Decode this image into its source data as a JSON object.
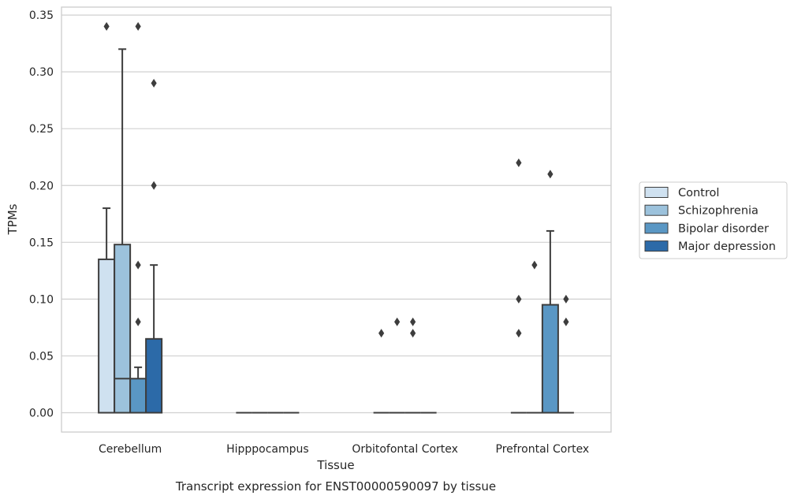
{
  "chart_data": {
    "type": "box",
    "title": "Transcript expression for ENST00000590097 by tissue",
    "xlabel": "Tissue",
    "ylabel": "TPMs",
    "ylim": [
      -0.017,
      0.357
    ],
    "yticks": [
      0.0,
      0.05,
      0.1,
      0.15,
      0.2,
      0.25,
      0.3,
      0.35
    ],
    "ytick_labels": [
      "0.00",
      "0.05",
      "0.10",
      "0.15",
      "0.20",
      "0.25",
      "0.30",
      "0.35"
    ],
    "grid": true,
    "legend_position": "right",
    "categories": [
      "Cerebellum",
      "Hipppocampus",
      "Orbitofontal Cortex",
      "Prefrontal Cortex"
    ],
    "series": [
      {
        "name": "Control",
        "color": "#cfe1f0",
        "boxes": [
          {
            "q1": 0.0,
            "median": 0.0,
            "q3": 0.135,
            "whisker_low": 0.0,
            "whisker_high": 0.18,
            "outliers": [
              0.34
            ]
          },
          {
            "q1": 0.0,
            "median": 0.0,
            "q3": 0.0,
            "whisker_low": 0.0,
            "whisker_high": 0.0,
            "outliers": []
          },
          {
            "q1": 0.0,
            "median": 0.0,
            "q3": 0.0,
            "whisker_low": 0.0,
            "whisker_high": 0.0,
            "outliers": [
              0.07
            ]
          },
          {
            "q1": 0.0,
            "median": 0.0,
            "q3": 0.0,
            "whisker_low": 0.0,
            "whisker_high": 0.0,
            "outliers": [
              0.07,
              0.1,
              0.22
            ]
          }
        ]
      },
      {
        "name": "Schizophrenia",
        "color": "#9cc2dc",
        "boxes": [
          {
            "q1": 0.0,
            "median": 0.03,
            "q3": 0.148,
            "whisker_low": 0.0,
            "whisker_high": 0.32,
            "outliers": []
          },
          {
            "q1": 0.0,
            "median": 0.0,
            "q3": 0.0,
            "whisker_low": 0.0,
            "whisker_high": 0.0,
            "outliers": []
          },
          {
            "q1": 0.0,
            "median": 0.0,
            "q3": 0.0,
            "whisker_low": 0.0,
            "whisker_high": 0.0,
            "outliers": [
              0.08
            ]
          },
          {
            "q1": 0.0,
            "median": 0.0,
            "q3": 0.0,
            "whisker_low": 0.0,
            "whisker_high": 0.0,
            "outliers": [
              0.13
            ]
          }
        ]
      },
      {
        "name": "Bipolar disorder",
        "color": "#5a97c4",
        "boxes": [
          {
            "q1": 0.0,
            "median": 0.0,
            "q3": 0.03,
            "whisker_low": 0.0,
            "whisker_high": 0.04,
            "outliers": [
              0.08,
              0.13,
              0.34
            ]
          },
          {
            "q1": 0.0,
            "median": 0.0,
            "q3": 0.0,
            "whisker_low": 0.0,
            "whisker_high": 0.0,
            "outliers": []
          },
          {
            "q1": 0.0,
            "median": 0.0,
            "q3": 0.0,
            "whisker_low": 0.0,
            "whisker_high": 0.0,
            "outliers": [
              0.07,
              0.08
            ]
          },
          {
            "q1": 0.0,
            "median": 0.0,
            "q3": 0.095,
            "whisker_low": 0.0,
            "whisker_high": 0.16,
            "outliers": [
              0.21
            ]
          }
        ]
      },
      {
        "name": "Major depression",
        "color": "#2c6aa8",
        "boxes": [
          {
            "q1": 0.0,
            "median": 0.0,
            "q3": 0.065,
            "whisker_low": 0.0,
            "whisker_high": 0.13,
            "outliers": [
              0.2,
              0.29
            ]
          },
          {
            "q1": 0.0,
            "median": 0.0,
            "q3": 0.0,
            "whisker_low": 0.0,
            "whisker_high": 0.0,
            "outliers": []
          },
          {
            "q1": 0.0,
            "median": 0.0,
            "q3": 0.0,
            "whisker_low": 0.0,
            "whisker_high": 0.0,
            "outliers": []
          },
          {
            "q1": 0.0,
            "median": 0.0,
            "q3": 0.0,
            "whisker_low": 0.0,
            "whisker_high": 0.0,
            "outliers": [
              0.08,
              0.1
            ]
          }
        ]
      }
    ]
  }
}
